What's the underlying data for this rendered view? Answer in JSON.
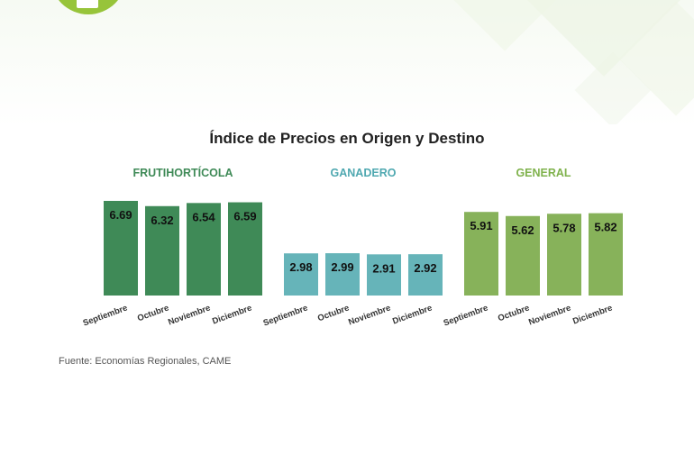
{
  "chart_data": {
    "type": "bar",
    "title": "Índice de Precios en Origen y Destino",
    "xlabel": "",
    "ylabel": "",
    "ylim": [
      0,
      7
    ],
    "grid": false,
    "legend": "none",
    "groups": [
      {
        "name": "FRUTIHORTÍCOLA",
        "label_color": "#3f8a57",
        "bar_color": "#3f8a57",
        "categories": [
          "Septiembre",
          "Octubre",
          "Noviembre",
          "Diciembre"
        ],
        "values": [
          6.69,
          6.32,
          6.54,
          6.59
        ],
        "value_labels": [
          "6.69",
          "6.32",
          "6.54",
          "6.59"
        ]
      },
      {
        "name": "GANADERO",
        "label_color": "#4fa8b0",
        "bar_color": "#66b4b9",
        "categories": [
          "Septiembre",
          "Octubre",
          "Noviembre",
          "Diciembre"
        ],
        "values": [
          2.98,
          2.99,
          2.91,
          2.92
        ],
        "value_labels": [
          "2.98",
          "2.99",
          "2.91",
          "2.92"
        ]
      },
      {
        "name": "GENERAL",
        "label_color": "#7fb24c",
        "bar_color": "#87b25a",
        "categories": [
          "Septiembre",
          "Octubre",
          "Noviembre",
          "Diciembre"
        ],
        "values": [
          5.91,
          5.62,
          5.78,
          5.82
        ],
        "value_labels": [
          "5.91",
          "5.62",
          "5.78",
          "5.82"
        ]
      }
    ],
    "source": "Fuente: Economías Regionales, CAME"
  },
  "colors": {
    "title": "#222222",
    "value_text": "#111111",
    "tick_text": "#333333",
    "badge": "#97c43a"
  }
}
